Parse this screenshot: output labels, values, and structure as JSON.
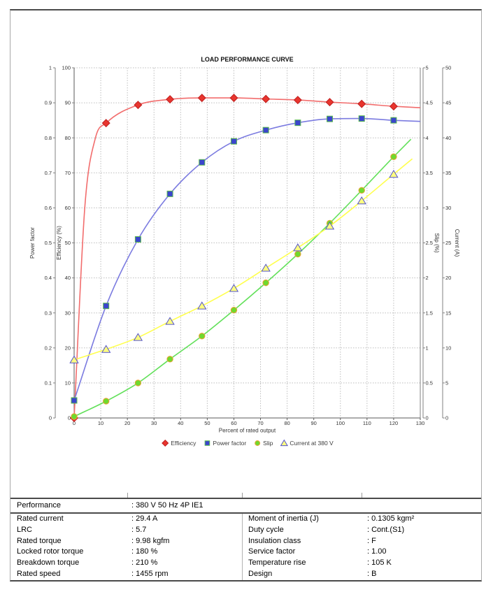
{
  "chart_data": {
    "type": "line",
    "title": "LOAD PERFORMANCE CURVE",
    "xlabel": "Percent of rated output",
    "x_axis": {
      "min": 0,
      "max": 130,
      "tick_step": 10
    },
    "x": [
      0,
      12,
      24,
      36,
      48,
      60,
      72,
      84,
      96,
      108,
      120
    ],
    "axes": {
      "power_factor": {
        "title": "Power factor",
        "min": 0,
        "max": 1,
        "step": 0.1
      },
      "efficiency": {
        "title": "Efficiency (%)",
        "min": 0,
        "max": 100,
        "step": 10
      },
      "slip": {
        "title": "Slip (%)",
        "min": 0,
        "max": 5,
        "step": 0.5
      },
      "current": {
        "title": "Current (A)",
        "min": 0,
        "max": 50,
        "step": 5
      }
    },
    "series": [
      {
        "name": "Efficiency",
        "axis": "efficiency",
        "marker": "diamond",
        "line_color": "#f26d6d",
        "marker_fill": "#e8352e",
        "marker_edge": "#bf1f1f",
        "values": [
          0,
          84.2,
          89.4,
          91.0,
          91.4,
          91.4,
          91.1,
          90.8,
          90.2,
          89.7,
          89.0
        ],
        "line_support": [
          {
            "x": 4,
            "y": 60
          },
          {
            "x": 8,
            "y": 80
          }
        ],
        "line_end": {
          "x": 130,
          "y": 88.6
        }
      },
      {
        "name": "Power factor",
        "axis": "power_factor",
        "marker": "square",
        "line_color": "#7b7be0",
        "marker_fill": "#3b45cd",
        "marker_edge": "#59b84e",
        "values": [
          0.05,
          0.32,
          0.51,
          0.64,
          0.73,
          0.79,
          0.822,
          0.843,
          0.854,
          0.855,
          0.85
        ],
        "line_support": [],
        "line_end": {
          "x": 130,
          "y": 0.847
        }
      },
      {
        "name": "Slip",
        "axis": "slip",
        "marker": "circle",
        "line_color": "#62e05a",
        "marker_fill": "#6fd92e",
        "marker_edge": "#eda033",
        "values": [
          0.02,
          0.24,
          0.5,
          0.84,
          1.17,
          1.54,
          1.93,
          2.34,
          2.78,
          3.25,
          3.73
        ],
        "line_support": [],
        "line_end": {
          "x": 126.5,
          "y": 3.98
        }
      },
      {
        "name": "Current at 380 V",
        "axis": "current",
        "marker": "triangle",
        "line_color": "#ffff4d",
        "marker_fill": "#ffff80",
        "marker_edge": "#5353cb",
        "values": [
          8.3,
          9.8,
          11.5,
          13.8,
          16.0,
          18.5,
          21.4,
          24.3,
          27.4,
          31.0,
          34.8
        ],
        "line_support": [],
        "line_end": {
          "x": 127,
          "y": 37.0
        }
      }
    ],
    "style": {
      "grid_color": "#bdbdbd",
      "axis_color": "#808080",
      "axis_dark": "#5a5a5a",
      "text_color": "#333333",
      "title_color": "#111111",
      "legend_text_color": "#3c3c3c"
    },
    "legend_position": "bottom",
    "grid": true
  },
  "table": {
    "performance": {
      "label": "Performance",
      "value": ": 380 V 50 Hz 4P IE1"
    },
    "rows": [
      {
        "l_label": "Rated current",
        "l_value": ": 29.4 A",
        "r_label": "Moment of inertia (J)",
        "r_value": ": 0.1305 kgm²"
      },
      {
        "l_label": "LRC",
        "l_value": ": 5.7",
        "r_label": "Duty cycle",
        "r_value": ": Cont.(S1)"
      },
      {
        "l_label": "Rated torque",
        "l_value": ": 9.98 kgfm",
        "r_label": "Insulation class",
        "r_value": ": F"
      },
      {
        "l_label": "Locked rotor torque",
        "l_value": ": 180 %",
        "r_label": "Service factor",
        "r_value": ": 1.00"
      },
      {
        "l_label": "Breakdown torque",
        "l_value": ": 210 %",
        "r_label": "Temperature rise",
        "r_value": ": 105 K"
      },
      {
        "l_label": "Rated speed",
        "l_value": ": 1455 rpm",
        "r_label": "Design",
        "r_value": ": B"
      }
    ]
  }
}
